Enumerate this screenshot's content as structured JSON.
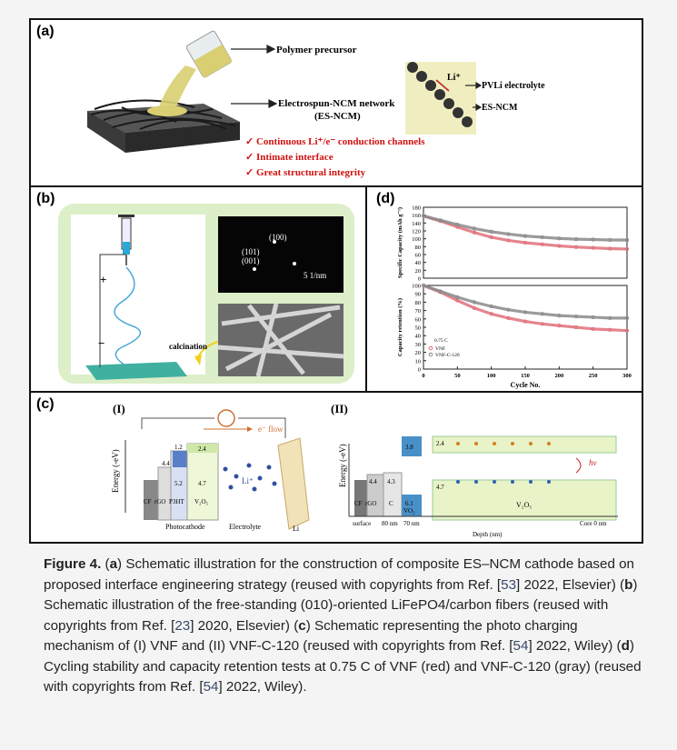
{
  "panels": {
    "a": "(a)",
    "b": "(b)",
    "c": "(c)",
    "d": "(d)"
  },
  "panel_a": {
    "arrow1": "Polymer precursor",
    "arrow2_l1": "Electrospun-NCM network",
    "arrow2_l2": "(ES-NCM)",
    "li": "Li⁺",
    "pvli": "PVLi electrolyte",
    "esncm": "ES-NCM",
    "bullets": [
      "✓ Continuous Li⁺/e⁻ conduction channels",
      "✓ Intimate interface",
      "✓ Great structural integrity"
    ]
  },
  "panel_b": {
    "p100": "(100)",
    "p101": "(101)",
    "p001": "(001)",
    "scale": "5 1/nm",
    "calcination": "calcination"
  },
  "panel_c": {
    "i_label": "(I)",
    "ii_label": "(II)",
    "eflow": "e⁻ flow",
    "yaxis": "Energy (-eV)",
    "v12": "1.2",
    "v24": "2.4",
    "v44": "4.4",
    "v52": "5.2",
    "v47": "4.7",
    "cf": "CF",
    "rgo": "rGO",
    "p3ht": "P3HT",
    "v2o5": "V₂O₅",
    "lip": "Li⁺",
    "li": "Li",
    "photocathode": "Photocathode",
    "electrolyte": "Electrolyte",
    "ii_38": "3.8",
    "ii_24": "2.4",
    "ii_44": "4.4",
    "ii_43": "4.3",
    "ii_61": "6.1",
    "ii_47": "4.7",
    "ii_c": "C",
    "ii_vo2": "VO₂",
    "ii_v2o5": "V₂O₅",
    "hv": "hv",
    "surface": "surface",
    "n80": "80 nm",
    "n70": "70 nm",
    "core": "Core 0 nm",
    "depth": "Depth (nm)"
  },
  "chart_data": [
    {
      "type": "line",
      "title": "",
      "xlabel": "",
      "ylabel": "Specific Capacity (mAh g⁻¹)",
      "xlim": [
        0,
        300
      ],
      "ylim": [
        0,
        180
      ],
      "yticks": [
        0,
        20,
        40,
        60,
        80,
        100,
        120,
        140,
        160,
        180
      ],
      "x": [
        0,
        25,
        50,
        75,
        100,
        125,
        150,
        175,
        200,
        225,
        250,
        275,
        300
      ],
      "series": [
        {
          "name": "VNF",
          "color": "#e0707a",
          "values": [
            158,
            145,
            130,
            116,
            104,
            96,
            90,
            86,
            82,
            79,
            77,
            75,
            74
          ]
        },
        {
          "name": "VNF-C-120",
          "color": "#8a8a8a",
          "values": [
            158,
            147,
            136,
            126,
            118,
            112,
            107,
            104,
            101,
            99,
            98,
            97,
            97
          ]
        }
      ]
    },
    {
      "type": "line",
      "title": "",
      "xlabel": "Cycle No.",
      "ylabel": "Capacity retention (%)",
      "xlim": [
        0,
        300
      ],
      "ylim": [
        0,
        100
      ],
      "yticks": [
        0,
        10,
        20,
        30,
        40,
        50,
        60,
        70,
        80,
        90,
        100
      ],
      "xticks": [
        0,
        50,
        100,
        150,
        200,
        250,
        300
      ],
      "legend_title": "0.75 C",
      "legend": [
        "VNF",
        "VNF-C-120"
      ],
      "x": [
        0,
        25,
        50,
        75,
        100,
        125,
        150,
        175,
        200,
        225,
        250,
        275,
        300
      ],
      "series": [
        {
          "name": "VNF",
          "color": "#e0707a",
          "values": [
            100,
            92,
            82,
            73,
            66,
            61,
            57,
            54,
            52,
            50,
            48,
            47,
            46
          ]
        },
        {
          "name": "VNF-C-120",
          "color": "#8a8a8a",
          "values": [
            100,
            93,
            86,
            80,
            75,
            71,
            68,
            66,
            64,
            63,
            62,
            61,
            61
          ]
        }
      ]
    }
  ],
  "caption": {
    "fig": "Figure 4.",
    "parts": [
      " (",
      ")",
      " Schematic illustration for the construction of composite ES–NCM cathode based on proposed interface engineering strategy (reused with copyrights from Ref. ["
    ],
    "a": "a",
    "ref53": "53",
    "t2": "] 2022, Elsevier) (",
    "b": "b",
    "t3": ") Schematic illustration of the free-standing (010)-oriented LiFePO4/carbon fibers (reused with copyrights from Ref. [",
    "ref23": "23",
    "t4": "] 2020, Elsevier) (",
    "c": "c",
    "t5": ") Schematic representing the photo charging mechanism of (I) VNF and (II) VNF-C-120 (reused with copyrights from Ref. [",
    "ref54a": "54",
    "t6": "] 2022, Wiley) (",
    "d": "d",
    "t7": ") Cycling stability and capacity retention tests at 0.75 C of VNF (red) and VNF-C-120 (gray) (reused with copyrights from Ref. [",
    "ref54b": "54",
    "t8": "] 2022, Wiley)."
  }
}
